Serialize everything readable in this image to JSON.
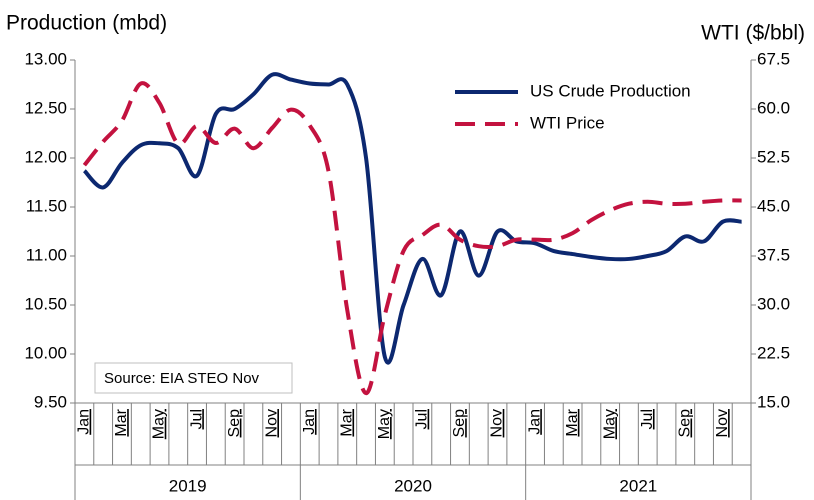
{
  "chart_data": {
    "type": "line",
    "y_axis_title": "Production (mbd)",
    "y2_axis_title": "WTI  ($/bbl)",
    "annotation": "Source: EIA STEO Nov",
    "categories": [
      "Jan",
      null,
      "Mar",
      null,
      "May",
      null,
      "Jul",
      null,
      "Sep",
      null,
      "Nov",
      null,
      "Jan",
      null,
      "Mar",
      null,
      "May",
      null,
      "Jul",
      null,
      "Sep",
      null,
      "Nov",
      null,
      "Jan",
      null,
      "Mar",
      null,
      "May",
      null,
      "Jul",
      null,
      "Sep",
      null,
      "Nov",
      null
    ],
    "year_groups": [
      "2019",
      "2020",
      "2021"
    ],
    "ylim": [
      9.5,
      13
    ],
    "yticks": [
      {
        "value": 9.5,
        "label": "9.50"
      },
      {
        "value": 10,
        "label": "10.00"
      },
      {
        "value": 10.5,
        "label": "10.50"
      },
      {
        "value": 11,
        "label": "11.00"
      },
      {
        "value": 11.5,
        "label": "11.50"
      },
      {
        "value": 12,
        "label": "12.00"
      },
      {
        "value": 12.5,
        "label": "12.50"
      },
      {
        "value": 13,
        "label": "13.00"
      }
    ],
    "y2lim": [
      15,
      67.5
    ],
    "y2ticks": [
      {
        "value": 15,
        "label": "15.0"
      },
      22.5,
      {
        "value": 30,
        "label": "30.0"
      },
      37.5,
      {
        "value": 45,
        "label": "45.0"
      },
      52.5,
      {
        "value": 60,
        "label": "60.0"
      },
      67.5
    ],
    "legend": "upper right",
    "series": [
      {
        "name": "US Crude Production",
        "color": "#0c2870",
        "dashed": false,
        "values": [
          11.87,
          11.7,
          11.95,
          12.13,
          12.15,
          12.1,
          11.82,
          12.45,
          12.5,
          12.65,
          12.85,
          12.8,
          12.76,
          12.75,
          12.75,
          12.0,
          9.97,
          10.5,
          10.97,
          10.6,
          11.25,
          10.8,
          11.25,
          11.15,
          11.13,
          11.05,
          11.02,
          10.99,
          10.97,
          10.97,
          11.0,
          11.05,
          11.2,
          11.15,
          11.35,
          11.35
        ]
      },
      {
        "name": "WTI Price",
        "color": "#c3123f",
        "dashed": true,
        "axis": "y2",
        "values": [
          51.4,
          55.0,
          58.2,
          63.9,
          60.9,
          54.7,
          57.4,
          54.8,
          57.0,
          54.0,
          57.1,
          59.9,
          57.5,
          50.5,
          29.2,
          16.5,
          28.5,
          38.3,
          40.7,
          42.3,
          40.0,
          39.0,
          39.0,
          40.0,
          40.0,
          40.0,
          41.0,
          43.0,
          44.5,
          45.5,
          45.8,
          45.5,
          45.5,
          45.8,
          46.0,
          46.0
        ]
      }
    ]
  }
}
